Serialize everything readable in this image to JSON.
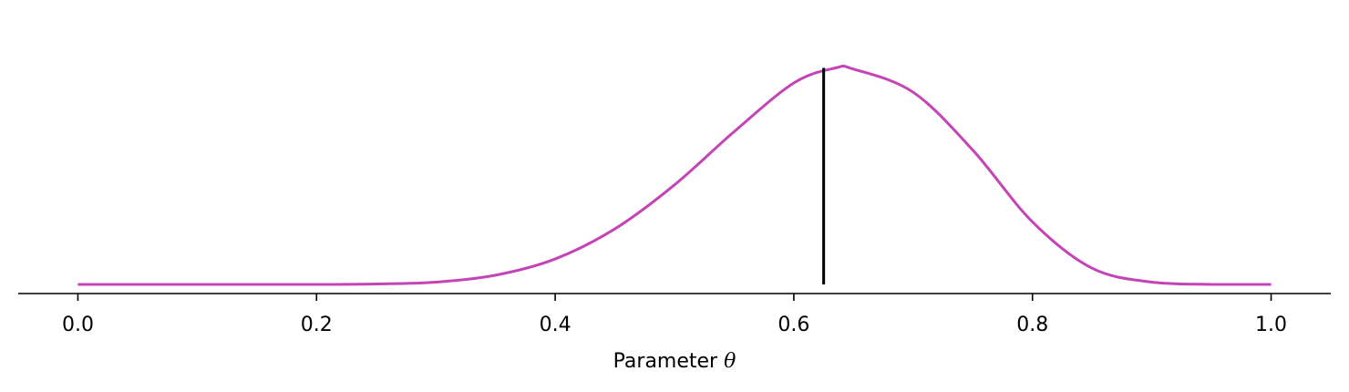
{
  "chart_data": {
    "type": "line",
    "title": "",
    "xlabel_prefix": "Parameter",
    "xlabel_symbol": "θ",
    "ylabel": "",
    "xlim": [
      -0.05,
      1.05
    ],
    "ylim": [
      0,
      1.0
    ],
    "x_ticks": [
      "0.0",
      "0.2",
      "0.4",
      "0.6",
      "0.8",
      "1.0"
    ],
    "grid": false,
    "series": [
      {
        "color": "#c444b8",
        "x": [
          0.0,
          0.05,
          0.1,
          0.15,
          0.2,
          0.25,
          0.3,
          0.35,
          0.4,
          0.45,
          0.5,
          0.55,
          0.6,
          0.635,
          0.65,
          0.7,
          0.75,
          0.8,
          0.85,
          0.9,
          0.95,
          1.0
        ],
        "y": [
          0.0,
          0.0,
          0.0,
          0.0,
          0.0,
          0.002,
          0.01,
          0.04,
          0.11,
          0.24,
          0.43,
          0.66,
          0.87,
          0.935,
          0.93,
          0.83,
          0.58,
          0.27,
          0.07,
          0.01,
          0.0,
          0.0
        ]
      }
    ],
    "reference_line": {
      "x": 0.625,
      "y_max": 0.935,
      "color": "#000000"
    }
  }
}
